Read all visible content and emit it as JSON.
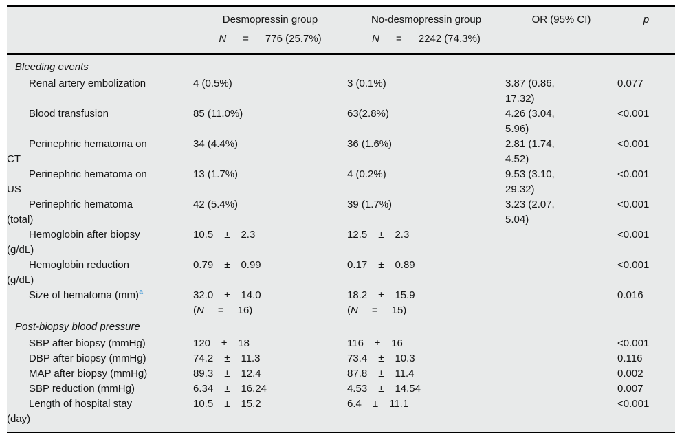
{
  "table": {
    "colors": {
      "background": "#E8EAEA",
      "rule": "#000000",
      "footnote_marker": "#56A3D8",
      "text": "#151515"
    },
    "misc": {
      "pm": "±",
      "eq": "=",
      "n_label": "N",
      "paren_open": "("
    },
    "header": {
      "col2": {
        "title": "Desmopressin group",
        "n_label": "N",
        "eq": "=",
        "n_value": "776 (25.7%)"
      },
      "col3": {
        "title": "No-desmopressin group",
        "n_label": "N",
        "eq": "=",
        "n_value": "2242 (74.3%)"
      },
      "col4": {
        "title": "OR (95% CI)"
      },
      "col5": {
        "title": "p"
      }
    },
    "rows": [
      {
        "type": "section",
        "label": "Bleeding events"
      },
      {
        "type": "item",
        "label": "Renal artery embolization",
        "d": "4 (0.5%)",
        "n": "3 (0.1%)",
        "or1": "3.87 (0.86,",
        "or2": "17.32)",
        "p": "0.077"
      },
      {
        "type": "item",
        "label": "Blood transfusion",
        "d": "85 (11.0%)",
        "n": "63(2.8%)",
        "or1": "4.26 (3.04,",
        "or2": "5.96)",
        "p": "<0.001"
      },
      {
        "type": "item",
        "label": "Perinephric hematoma on",
        "label2": "CT",
        "d": "34 (4.4%)",
        "n": "36 (1.6%)",
        "or1": "2.81 (1.74,",
        "or2": "4.52)",
        "p": "<0.001"
      },
      {
        "type": "item",
        "label": "Perinephric hematoma on",
        "label2": "US",
        "d": "13 (1.7%)",
        "n": "4 (0.2%)",
        "or1": "9.53 (3.10,",
        "or2": "29.32)",
        "p": "<0.001"
      },
      {
        "type": "item",
        "label": "Perinephric hematoma",
        "label2": "(total)",
        "d": "42 (5.4%)",
        "n": "39 (1.7%)",
        "or1": "3.23 (2.07,",
        "or2": "5.04)",
        "p": "<0.001"
      },
      {
        "type": "item",
        "label": "Hemoglobin after biopsy",
        "label2": "(g/dL)",
        "d_mean": "10.5",
        "d_sd": "2.3",
        "n_mean": "12.5",
        "n_sd": "2.3",
        "p": "<0.001"
      },
      {
        "type": "item",
        "label": "Hemoglobin reduction",
        "label2": "(g/dL)",
        "d_mean": "0.79",
        "d_sd": "0.99",
        "n_mean": "0.17",
        "n_sd": "0.89",
        "p": "<0.001"
      },
      {
        "type": "item",
        "label": "Size of hematoma (mm)",
        "sup": "a",
        "d_mean": "32.0",
        "d_sd": "14.0",
        "d_n": "16)",
        "n_mean": "18.2",
        "n_sd": "15.9",
        "n_n": "15)",
        "p": "0.016"
      },
      {
        "type": "section",
        "label": "Post-biopsy blood pressure"
      },
      {
        "type": "item",
        "label": "SBP after biopsy (mmHg)",
        "d_mean": "120",
        "d_sd": "18",
        "n_mean": "116",
        "n_sd": "16",
        "p": "<0.001"
      },
      {
        "type": "item",
        "label": "DBP after biopsy (mmHg)",
        "d_mean": "74.2",
        "d_sd": "11.3",
        "n_mean": "73.4",
        "n_sd": "10.3",
        "p": "0.116"
      },
      {
        "type": "item",
        "label": "MAP after biopsy (mmHg)",
        "d_mean": "89.3",
        "d_sd": "12.4",
        "n_mean": "87.8",
        "n_sd": "11.4",
        "p": "0.002"
      },
      {
        "type": "item",
        "label": "SBP reduction (mmHg)",
        "d_mean": "6.34",
        "d_sd": "16.24",
        "n_mean": "4.53",
        "n_sd": "14.54",
        "p": "0.007"
      },
      {
        "type": "item",
        "label": "Length of hospital stay",
        "label2": "(day)",
        "d_mean": "10.5",
        "d_sd": "15.2",
        "n_mean": "6.4",
        "n_sd": "11.1",
        "p": "<0.001"
      }
    ]
  }
}
